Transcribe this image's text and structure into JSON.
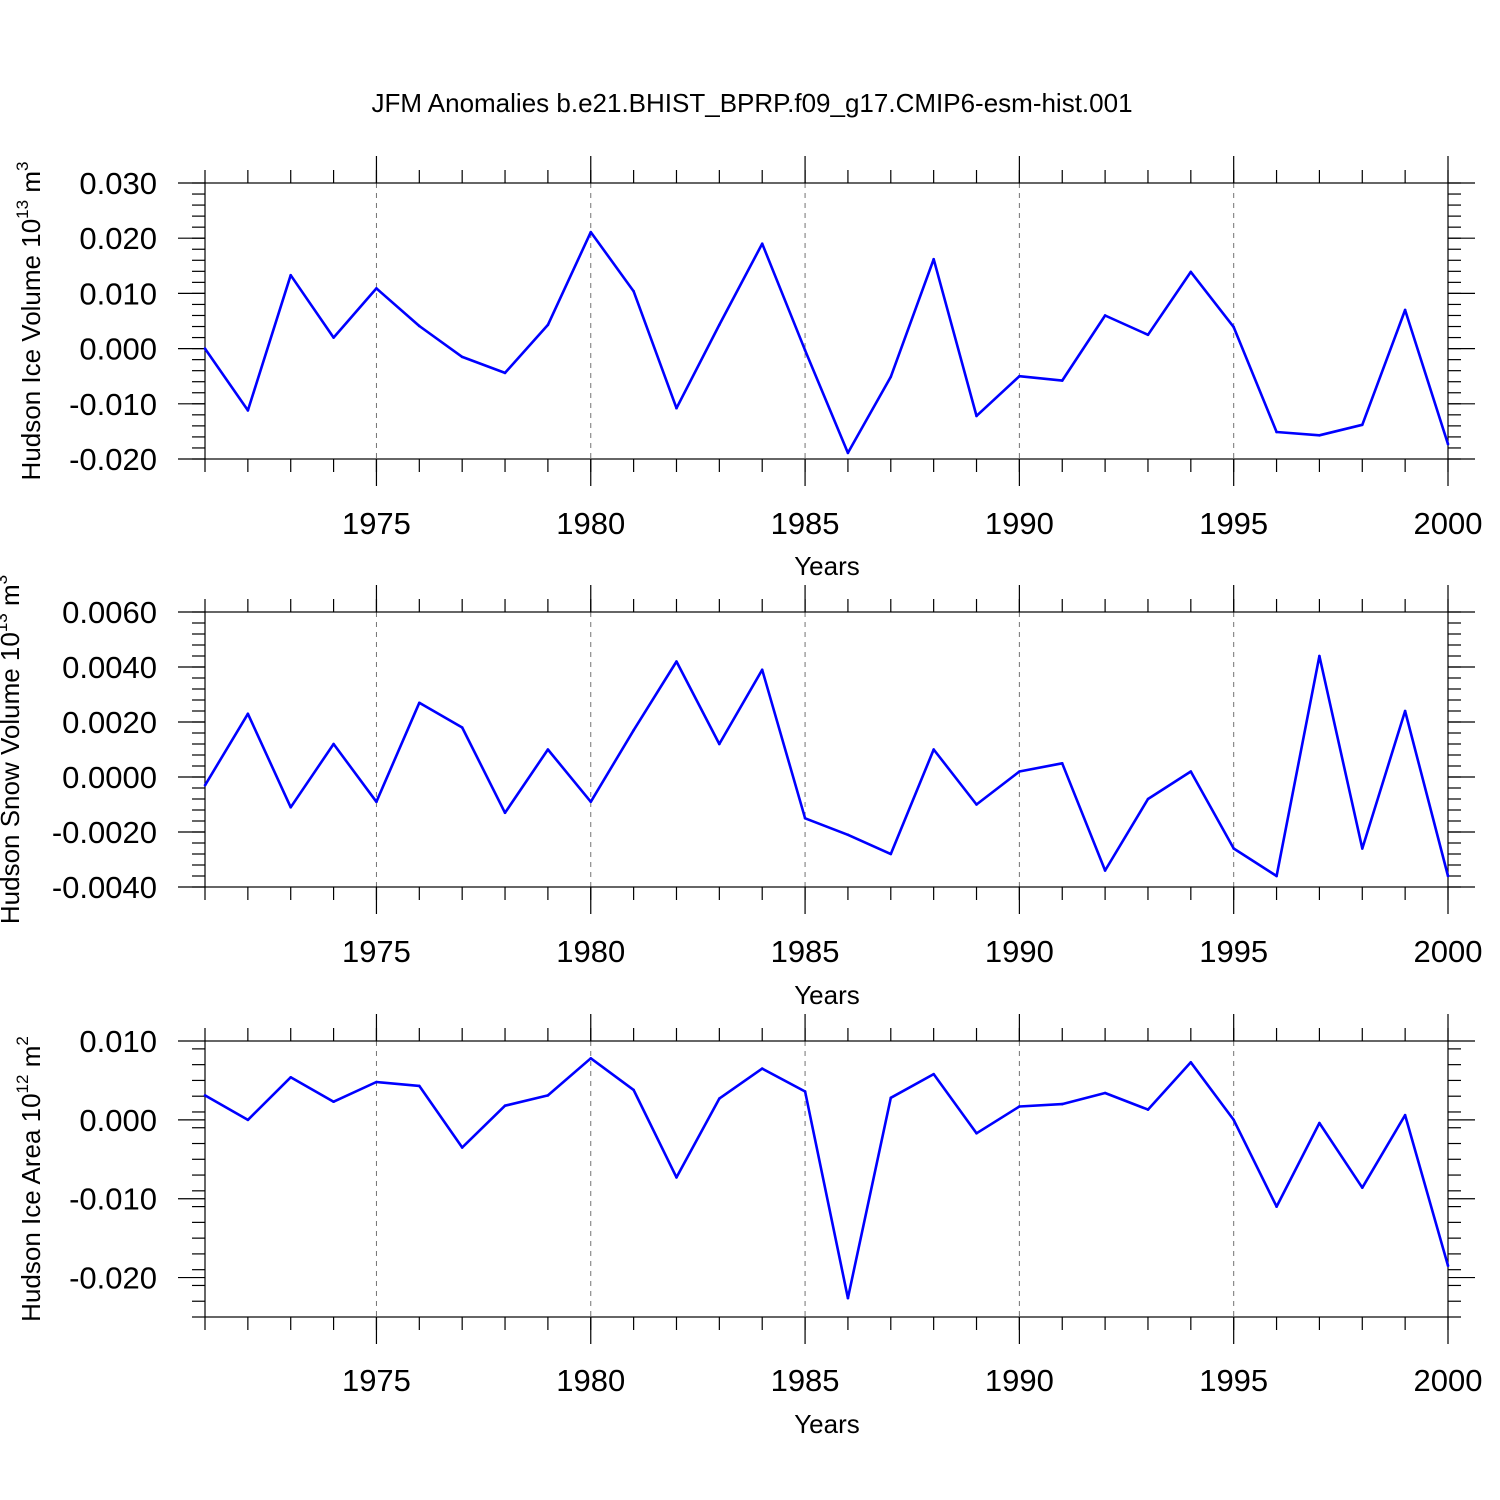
{
  "title": "JFM Anomalies b.e21.BHIST_BPRP.f09_g17.CMIP6-esm-hist.001",
  "series_color": "#0000ff",
  "chart_data": [
    {
      "type": "line",
      "ylabel_main": "Hudson Ice Volume 10",
      "ylabel_exp": "13",
      "ylabel_unit": "m",
      "ylabel_unit_exp": "3",
      "xlabel": "Years",
      "xlim": [
        1971,
        2000
      ],
      "ylim": [
        -0.02,
        0.03
      ],
      "yticks": [
        -0.02,
        -0.01,
        0.0,
        0.01,
        0.02,
        0.03
      ],
      "ytick_labels": [
        "-0.020",
        "-0.010",
        "0.000",
        "0.010",
        "0.020",
        "0.030"
      ],
      "xticks": [
        1975,
        1980,
        1985,
        1990,
        1995,
        2000
      ],
      "xtick_labels": [
        "1975",
        "1980",
        "1985",
        "1990",
        "1995",
        "2000"
      ],
      "grid": "vertical dashed at major x ticks",
      "x": [
        1971,
        1972,
        1973,
        1974,
        1975,
        1976,
        1977,
        1978,
        1979,
        1980,
        1981,
        1982,
        1983,
        1984,
        1985,
        1986,
        1987,
        1988,
        1989,
        1990,
        1991,
        1992,
        1993,
        1994,
        1995,
        1996,
        1997,
        1998,
        1999,
        2000
      ],
      "values": [
        0.0,
        -0.0112,
        0.0133,
        0.002,
        0.0109,
        0.0041,
        -0.0015,
        -0.0044,
        0.0043,
        0.0211,
        0.0104,
        -0.0108,
        0.0043,
        0.019,
        -0.0003,
        -0.0189,
        -0.0051,
        0.0162,
        -0.0122,
        -0.005,
        -0.0058,
        0.006,
        0.0025,
        0.0139,
        0.0039,
        -0.0151,
        -0.0157,
        -0.0138,
        0.007,
        -0.0173
      ]
    },
    {
      "type": "line",
      "ylabel_main": "Hudson Snow Volume 10",
      "ylabel_exp": "13",
      "ylabel_unit": "m",
      "ylabel_unit_exp": "3",
      "xlabel": "Years",
      "xlim": [
        1971,
        2000
      ],
      "ylim": [
        -0.004,
        0.006
      ],
      "yticks": [
        -0.004,
        -0.002,
        0.0,
        0.002,
        0.004,
        0.006
      ],
      "ytick_labels": [
        "-0.0040",
        "-0.0020",
        "0.0000",
        "0.0020",
        "0.0040",
        "0.0060"
      ],
      "xticks": [
        1975,
        1980,
        1985,
        1990,
        1995,
        2000
      ],
      "xtick_labels": [
        "1975",
        "1980",
        "1985",
        "1990",
        "1995",
        "2000"
      ],
      "grid": "vertical dashed at major x ticks",
      "x": [
        1971,
        1972,
        1973,
        1974,
        1975,
        1976,
        1977,
        1978,
        1979,
        1980,
        1981,
        1982,
        1983,
        1984,
        1985,
        1986,
        1987,
        1988,
        1989,
        1990,
        1991,
        1992,
        1993,
        1994,
        1995,
        1996,
        1997,
        1998,
        1999,
        2000
      ],
      "values": [
        -0.0003,
        0.0023,
        -0.0011,
        0.0012,
        -0.0009,
        0.0027,
        0.0018,
        -0.0013,
        0.001,
        -0.0009,
        0.0017,
        0.0042,
        0.0012,
        0.0039,
        -0.0015,
        -0.0021,
        -0.0028,
        0.001,
        -0.001,
        0.0002,
        0.0005,
        -0.0034,
        -0.0008,
        0.0002,
        -0.0026,
        -0.0036,
        0.0044,
        -0.0026,
        0.0024,
        -0.0036
      ]
    },
    {
      "type": "line",
      "ylabel_main": "Hudson Ice Area 10",
      "ylabel_exp": "12",
      "ylabel_unit": "m",
      "ylabel_unit_exp": "2",
      "xlabel": "Years",
      "xlim": [
        1971,
        2000
      ],
      "ylim": [
        -0.025,
        0.01
      ],
      "yticks": [
        -0.02,
        -0.01,
        0.0,
        0.01
      ],
      "ytick_labels": [
        "-0.020",
        "-0.010",
        "0.000",
        "0.010"
      ],
      "xticks": [
        1975,
        1980,
        1985,
        1990,
        1995,
        2000
      ],
      "xtick_labels": [
        "1975",
        "1980",
        "1985",
        "1990",
        "1995",
        "2000"
      ],
      "grid": "vertical dashed at major x ticks",
      "x": [
        1971,
        1972,
        1973,
        1974,
        1975,
        1976,
        1977,
        1978,
        1979,
        1980,
        1981,
        1982,
        1983,
        1984,
        1985,
        1986,
        1987,
        1988,
        1989,
        1990,
        1991,
        1992,
        1993,
        1994,
        1995,
        1996,
        1997,
        1998,
        1999,
        2000
      ],
      "values": [
        0.0031,
        0.0,
        0.0054,
        0.0023,
        0.0048,
        0.0043,
        -0.0035,
        0.0018,
        0.0031,
        0.0078,
        0.0038,
        -0.0073,
        0.0027,
        0.0065,
        0.0036,
        -0.0226,
        0.0028,
        0.0058,
        -0.0017,
        0.0017,
        0.002,
        0.0034,
        0.0013,
        0.0073,
        0.0,
        -0.011,
        -0.0004,
        -0.0086,
        0.0006,
        -0.0185
      ]
    }
  ]
}
